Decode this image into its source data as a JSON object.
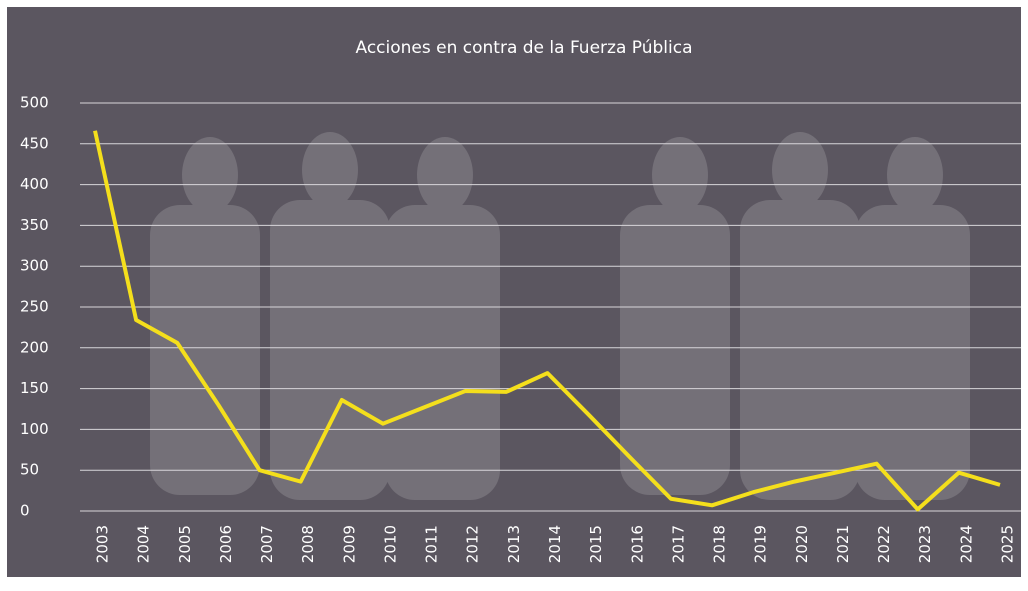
{
  "chart_data": {
    "type": "line",
    "title": "Acciones en contra de la Fuerza Pública",
    "categories": [
      "2003",
      "2004",
      "2005",
      "2006",
      "2007",
      "2008",
      "2009",
      "2010",
      "2011",
      "2012",
      "2013",
      "2014",
      "2015",
      "2016",
      "2017",
      "2018",
      "2019",
      "2020",
      "2021",
      "2022",
      "2023",
      "2024",
      "2025"
    ],
    "values": [
      466,
      234,
      206,
      130,
      50,
      36,
      136,
      107,
      127,
      147,
      146,
      169,
      118,
      66,
      15,
      7,
      23,
      36,
      47,
      58,
      2,
      47,
      32
    ],
    "color": "#f4df1c",
    "ylim": [
      0,
      500
    ],
    "yticks": [
      0,
      50,
      100,
      150,
      200,
      250,
      300,
      350,
      400,
      450,
      500
    ],
    "grid": true
  }
}
